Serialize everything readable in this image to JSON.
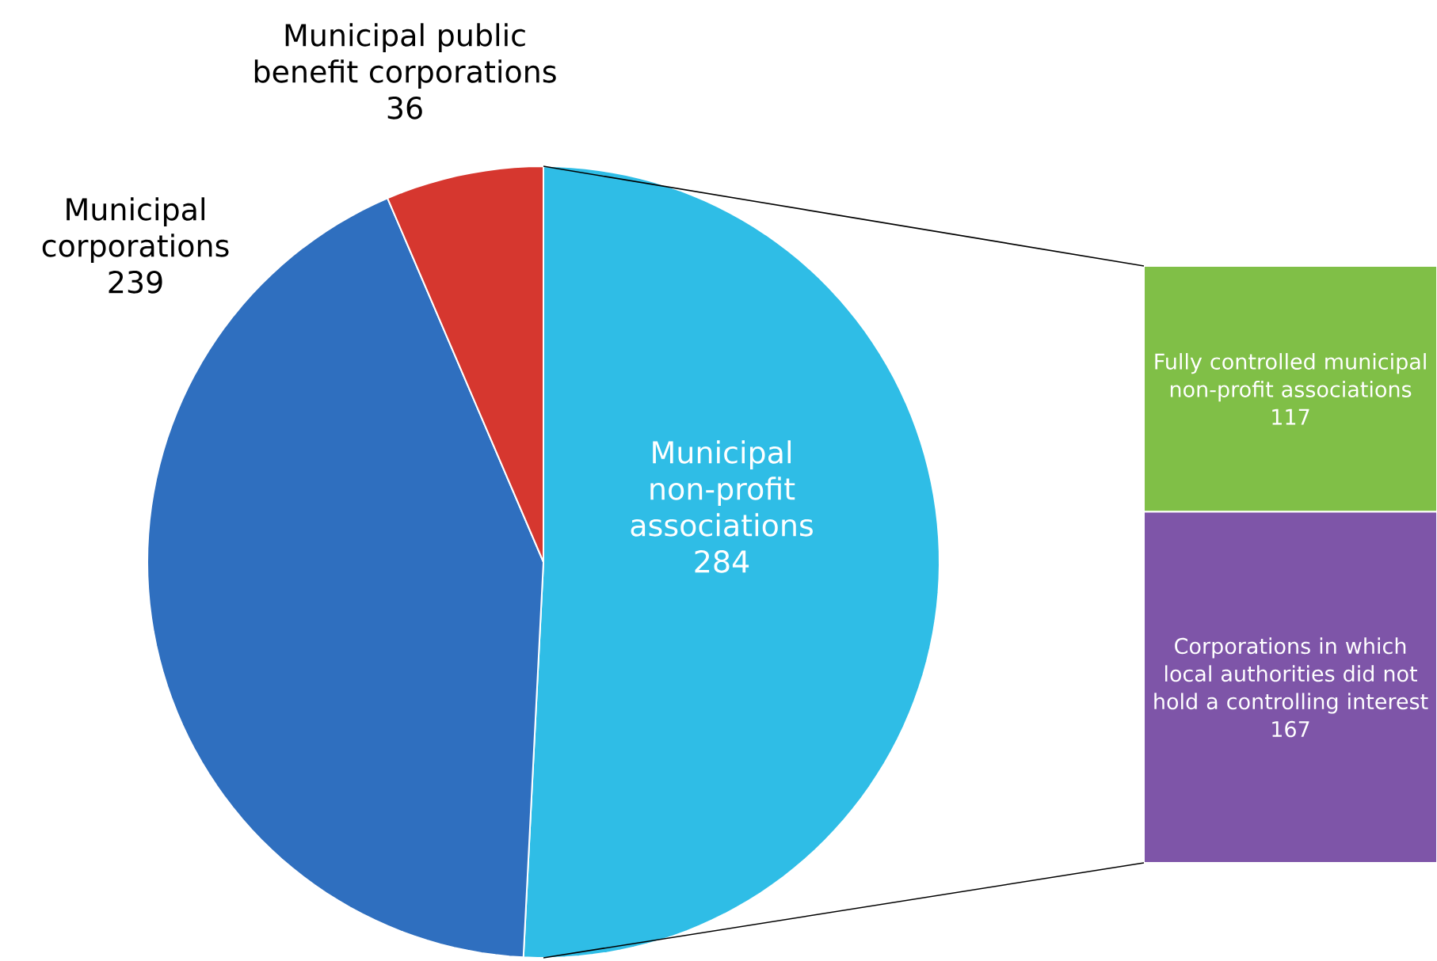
{
  "chart_data": [
    {
      "type": "pie",
      "categories": [
        "Municipal non-profit associations",
        "Municipal corporations",
        "Municipal public benefit corporations"
      ],
      "values": [
        284,
        239,
        36
      ],
      "colors": [
        "#2fbde6",
        "#2f6fbf",
        "#d6372f"
      ],
      "data_labels": true
    },
    {
      "type": "bar",
      "stacked": true,
      "categories": [
        null
      ],
      "series": [
        {
          "name": "Corporations in which local authorities did not hold a controlling interest",
          "color": "#7e55a8",
          "values": [
            167
          ]
        },
        {
          "name": "Fully controlled municipal non-profit associations",
          "color": "#80bf47",
          "values": [
            117
          ]
        }
      ],
      "data_labels": true
    }
  ]
}
